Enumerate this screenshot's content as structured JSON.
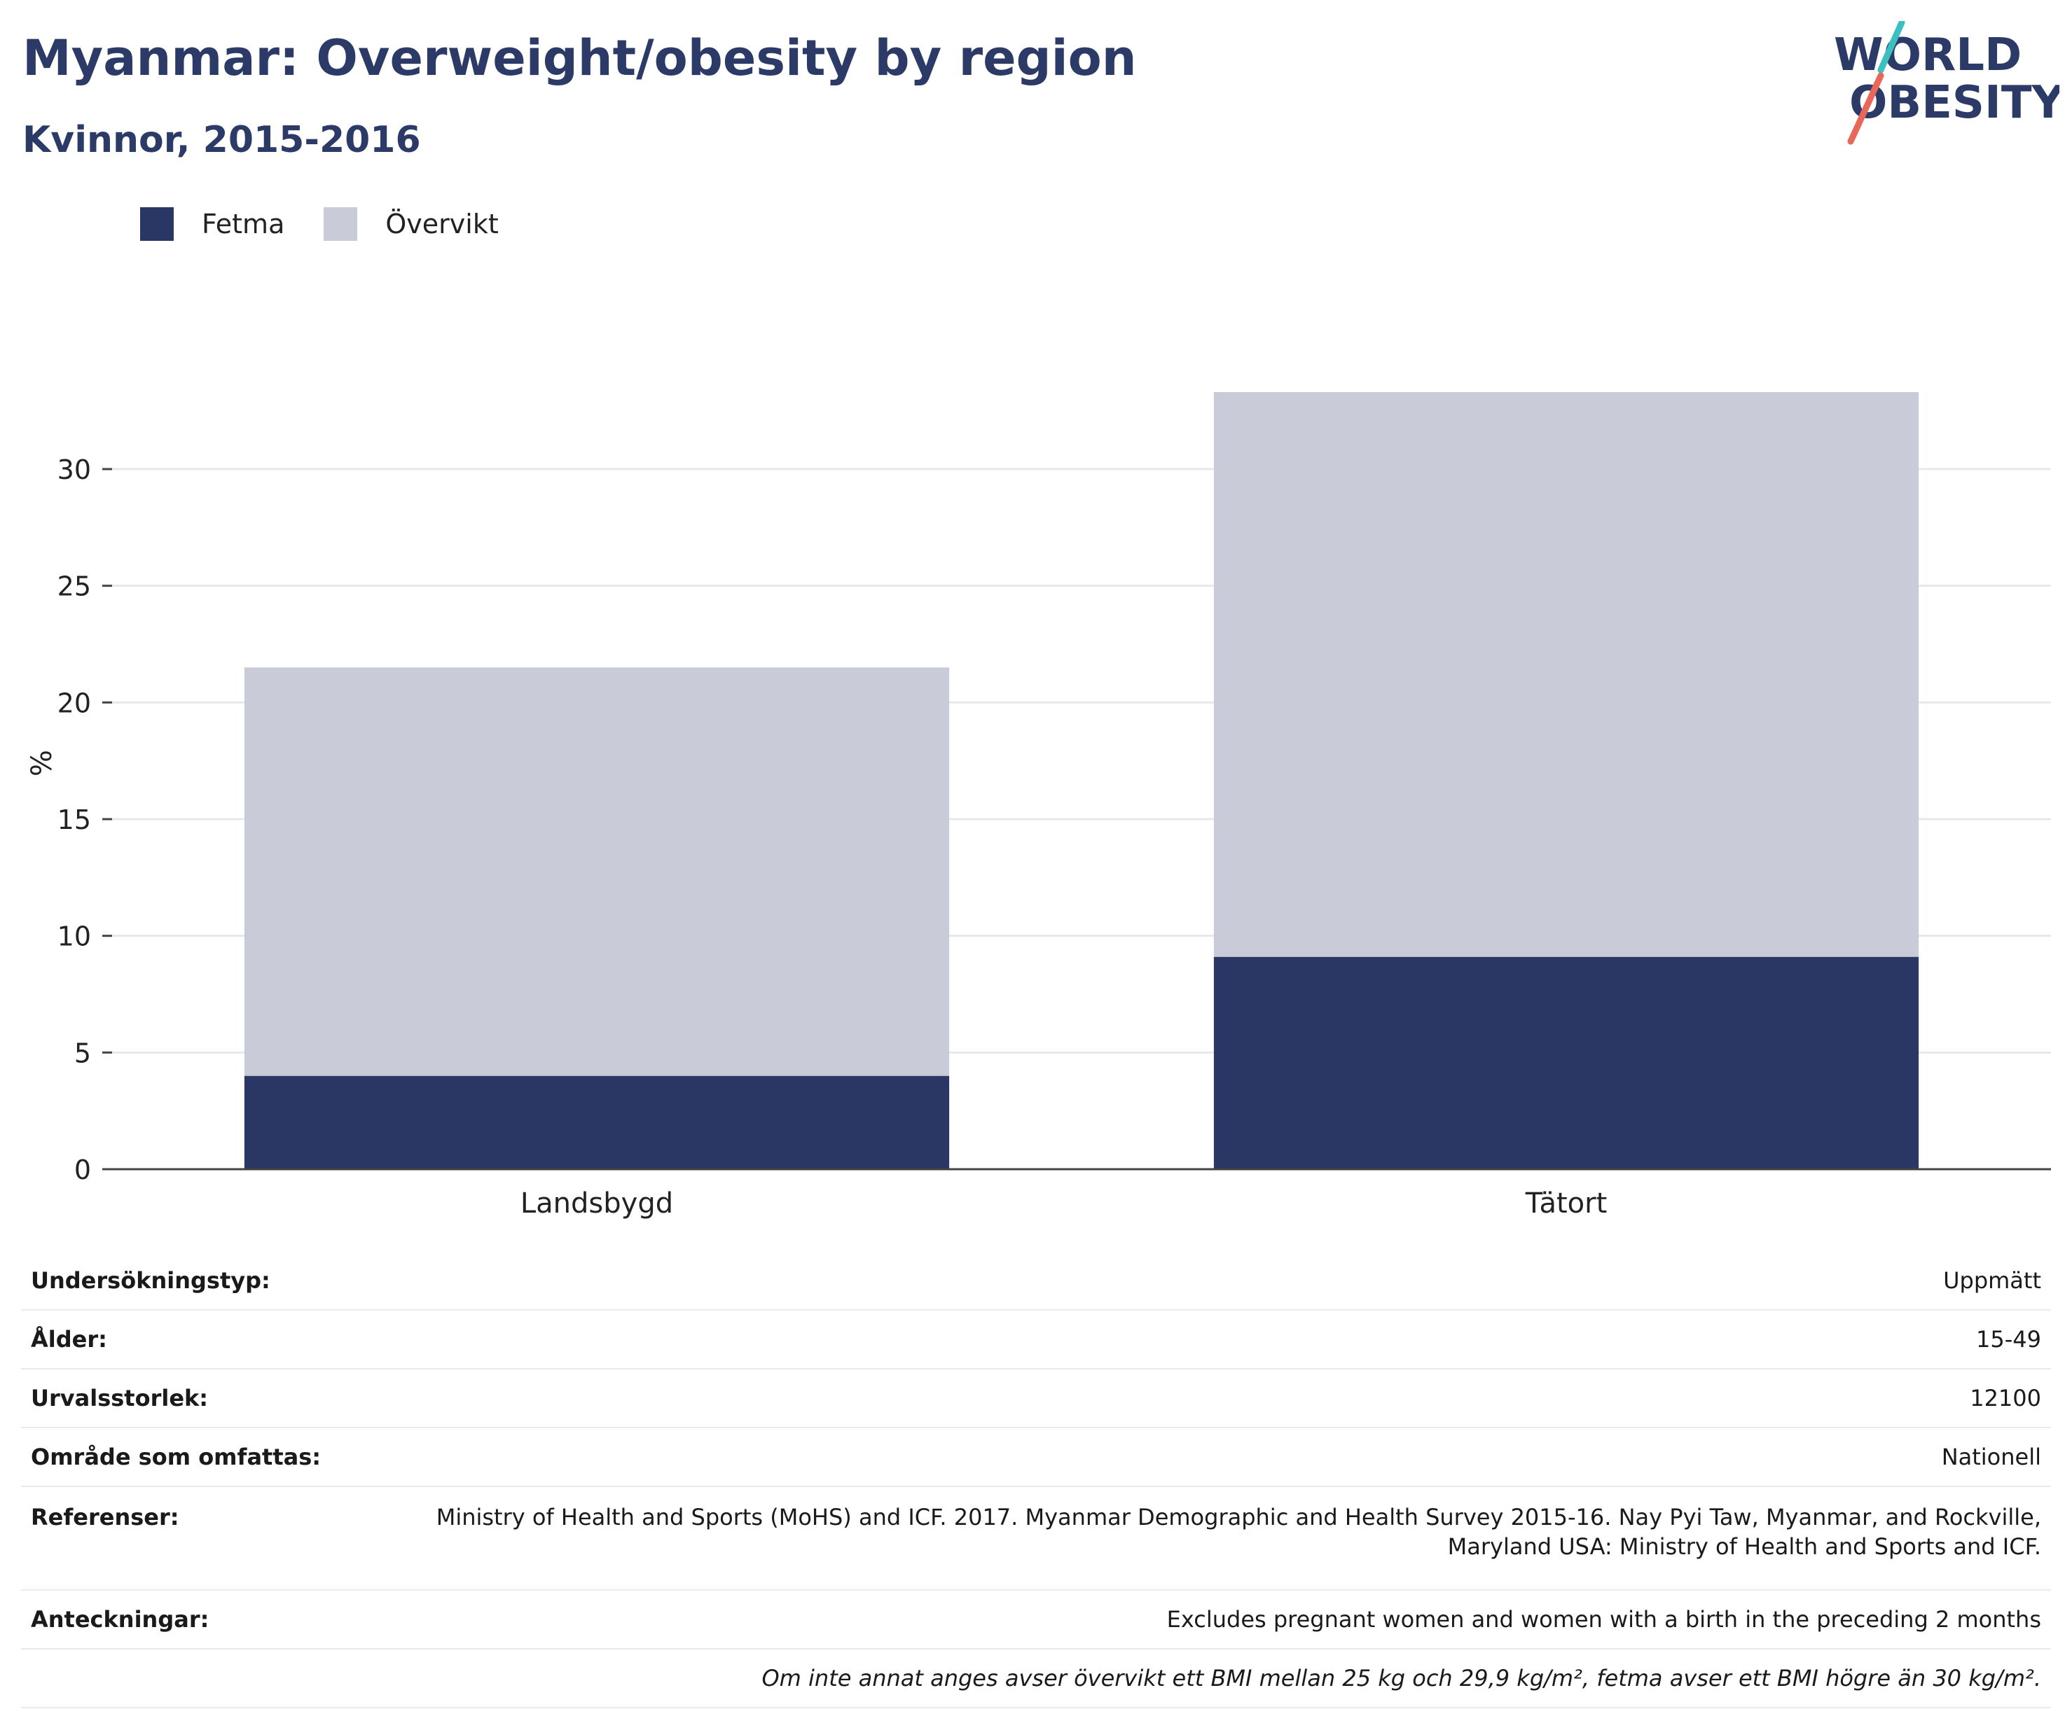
{
  "header": {
    "title": "Myanmar: Overweight/obesity by region",
    "subtitle": "Kvinnor, 2015-2016"
  },
  "logo": {
    "line1": "WORLD",
    "line2": "OBESITY",
    "colors": {
      "navy": "#2b3a67",
      "teal": "#3bbfc0",
      "coral": "#e8675a"
    }
  },
  "legend": [
    {
      "label": "Fetma",
      "color": "#2a3664"
    },
    {
      "label": "Övervikt",
      "color": "#c9ccd8"
    }
  ],
  "chart_data": {
    "type": "bar",
    "stacked": true,
    "categories": [
      "Landsbygd",
      "Tätort"
    ],
    "series": [
      {
        "name": "Fetma",
        "values": [
          4.0,
          9.1
        ],
        "color": "#2a3664"
      },
      {
        "name": "Övervikt",
        "values": [
          17.5,
          24.2
        ],
        "color": "#c9ccd8"
      }
    ],
    "ylabel": "%",
    "ylim": [
      0,
      33.3
    ],
    "yticks": [
      0,
      5,
      10,
      15,
      20,
      25,
      30
    ],
    "grid": true,
    "legend_position": "top-left"
  },
  "info": {
    "rows": [
      {
        "key": "Undersökningstyp:",
        "value": "Uppmätt"
      },
      {
        "key": "Ålder:",
        "value": "15-49"
      },
      {
        "key": "Urvalsstorlek:",
        "value": "12100"
      },
      {
        "key": "Område som omfattas:",
        "value": "Nationell"
      },
      {
        "key": "Referenser:",
        "value": "Ministry of Health and Sports (MoHS) and ICF. 2017. Myanmar Demographic and Health Survey 2015-16. Nay Pyi Taw, Myanmar, and Rockville, Maryland USA: Ministry of Health and Sports and ICF."
      },
      {
        "key": "Anteckningar:",
        "value": "Excludes pregnant women and women with a birth in the preceding 2 months"
      }
    ],
    "footnote": "Om inte annat anges avser övervikt ett BMI mellan 25 kg och 29,9 kg/m², fetma avser ett BMI högre än 30 kg/m²."
  }
}
